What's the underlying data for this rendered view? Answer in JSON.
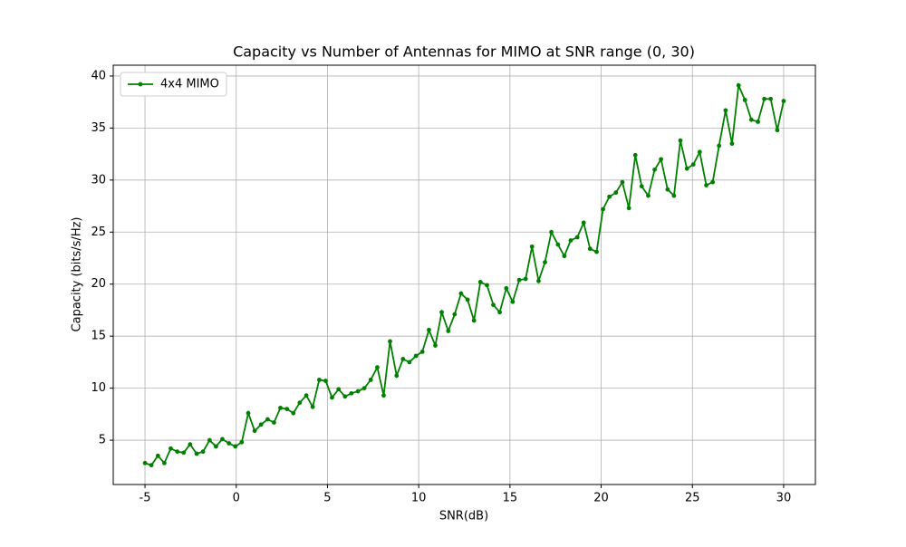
{
  "chart_data": {
    "type": "line",
    "title": "Capacity vs Number of Antennas for MIMO at SNR range (0, 30)",
    "x_label": "SNR(dB)",
    "y_label": "Capacity (bits/s/Hz)",
    "x": [
      -5,
      -4.65,
      -4.29,
      -3.94,
      -3.59,
      -3.23,
      -2.88,
      -2.53,
      -2.17,
      -1.82,
      -1.46,
      -1.11,
      -0.76,
      -0.4,
      -0.05,
      0.3,
      0.66,
      1.01,
      1.36,
      1.72,
      2.07,
      2.42,
      2.78,
      3.13,
      3.48,
      3.84,
      4.19,
      4.55,
      4.9,
      5.25,
      5.61,
      5.96,
      6.31,
      6.67,
      7.02,
      7.37,
      7.73,
      8.08,
      8.43,
      8.79,
      9.14,
      9.49,
      9.85,
      10.2,
      10.56,
      10.91,
      11.26,
      11.62,
      11.97,
      12.32,
      12.68,
      13.03,
      13.38,
      13.74,
      14.09,
      14.44,
      14.8,
      15.15,
      15.51,
      15.86,
      16.21,
      16.57,
      16.92,
      17.27,
      17.63,
      17.98,
      18.33,
      18.69,
      19.04,
      19.39,
      19.75,
      20.1,
      20.45,
      20.81,
      21.16,
      21.52,
      21.87,
      22.22,
      22.58,
      22.93,
      23.28,
      23.64,
      23.99,
      24.34,
      24.7,
      25.05,
      25.4,
      25.76,
      26.11,
      26.46,
      26.82,
      27.17,
      27.53,
      27.88,
      28.23,
      28.59,
      28.94,
      29.29,
      29.65,
      30
    ],
    "series": [
      {
        "name": "4x4 MIMO",
        "color": "#008000",
        "values": [
          2.8,
          2.6,
          3.5,
          2.8,
          4.2,
          3.9,
          3.8,
          4.6,
          3.7,
          3.9,
          5.0,
          4.4,
          5.1,
          4.7,
          4.4,
          4.8,
          7.6,
          5.9,
          6.5,
          7.0,
          6.7,
          8.1,
          8.0,
          7.6,
          8.6,
          9.3,
          8.2,
          10.8,
          10.7,
          9.1,
          9.9,
          9.2,
          9.5,
          9.7,
          10.0,
          10.8,
          12.0,
          9.3,
          14.5,
          11.2,
          12.8,
          12.5,
          13.1,
          13.5,
          15.6,
          14.1,
          17.3,
          15.5,
          17.1,
          19.1,
          18.5,
          16.5,
          20.2,
          19.9,
          18.0,
          17.3,
          19.6,
          18.3,
          20.4,
          20.5,
          23.6,
          20.3,
          22.1,
          25.0,
          23.8,
          22.7,
          24.2,
          24.5,
          25.9,
          23.4,
          23.1,
          27.2,
          28.4,
          28.8,
          29.8,
          27.3,
          32.4,
          29.4,
          28.5,
          31.0,
          32.0,
          29.1,
          28.5,
          33.8,
          31.1,
          31.5,
          32.7,
          29.5,
          29.8,
          33.3,
          36.7,
          33.5,
          39.1,
          37.7,
          35.8,
          35.6,
          37.8,
          37.8,
          34.8,
          37.6
        ]
      }
    ],
    "xlim": [
      -6.74,
      31.74
    ],
    "ylim": [
      0.74,
      41.04
    ],
    "xticks": [
      -5,
      0,
      5,
      10,
      15,
      20,
      25,
      30
    ],
    "yticks": [
      5,
      10,
      15,
      20,
      25,
      30,
      35,
      40
    ],
    "grid": true,
    "legend": "upper left"
  }
}
